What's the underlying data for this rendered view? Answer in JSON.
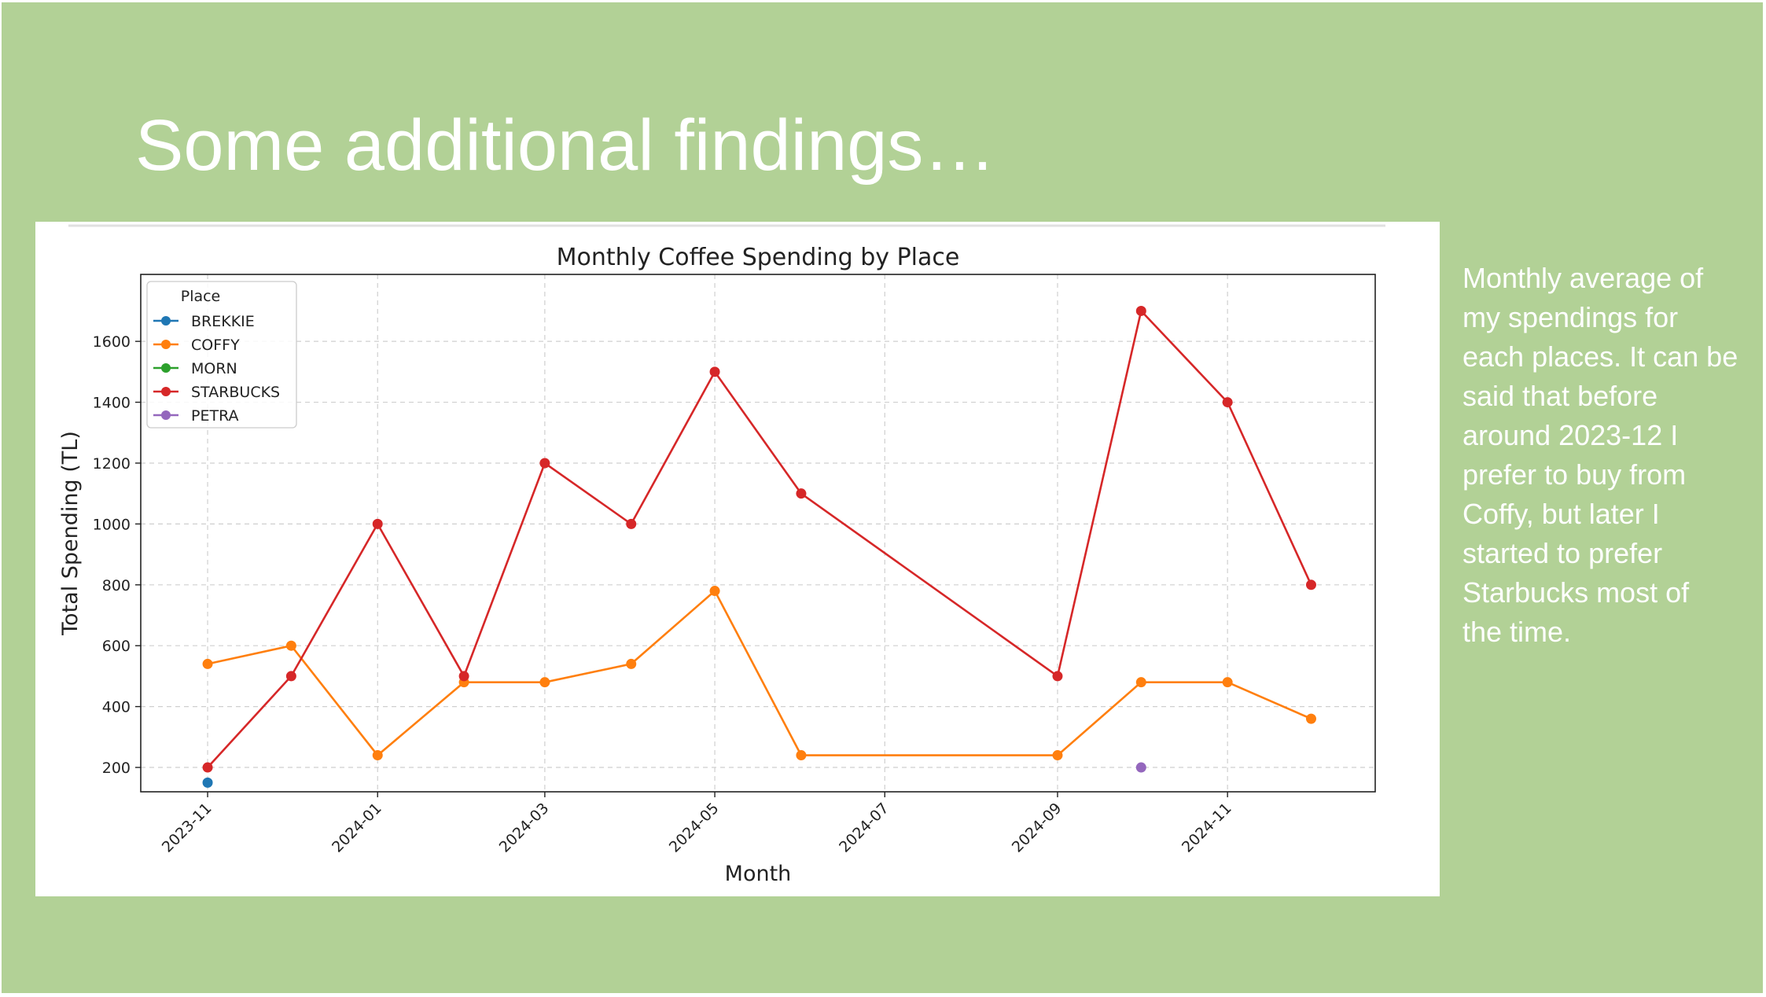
{
  "slide": {
    "title": "Some additional findings…",
    "description_lines": [
      "Monthly average of",
      "my spendings for",
      "each places. It can be",
      "said that before",
      "around 2023-12 I",
      "prefer to buy from",
      "Coffy, but later I",
      "started to prefer",
      "Starbucks most of",
      "the time."
    ]
  },
  "chart_data": {
    "type": "line",
    "title": "Monthly Coffee Spending by Place",
    "xlabel": "Month",
    "ylabel": "Total Spending (TL)",
    "x_ticks": [
      "2023-11",
      "2024-01",
      "2024-03",
      "2024-05",
      "2024-07",
      "2024-09",
      "2024-11"
    ],
    "y_ticks": [
      200,
      400,
      600,
      800,
      1000,
      1200,
      1400,
      1600
    ],
    "xlim": [
      "2023-10-08",
      "2024-12-24"
    ],
    "ylim": [
      120,
      1820
    ],
    "grid": true,
    "legend_title": "Place",
    "legend_position": "top-left",
    "series": [
      {
        "name": "BREKKIE",
        "color": "#1f77b4",
        "points": [
          {
            "x": "2023-11-01",
            "y": 150
          }
        ]
      },
      {
        "name": "COFFY",
        "color": "#ff7f0e",
        "points": [
          {
            "x": "2023-11-01",
            "y": 540
          },
          {
            "x": "2023-12-01",
            "y": 600
          },
          {
            "x": "2024-01-01",
            "y": 240
          },
          {
            "x": "2024-02-01",
            "y": 480
          },
          {
            "x": "2024-03-01",
            "y": 480
          },
          {
            "x": "2024-04-01",
            "y": 540
          },
          {
            "x": "2024-05-01",
            "y": 780
          },
          {
            "x": "2024-06-01",
            "y": 240
          },
          {
            "x": "2024-09-01",
            "y": 240
          },
          {
            "x": "2024-10-01",
            "y": 480
          },
          {
            "x": "2024-11-01",
            "y": 480
          },
          {
            "x": "2024-12-01",
            "y": 360
          }
        ]
      },
      {
        "name": "MORN",
        "color": "#2ca02c",
        "points": []
      },
      {
        "name": "STARBUCKS",
        "color": "#d62728",
        "points": [
          {
            "x": "2023-11-01",
            "y": 200
          },
          {
            "x": "2023-12-01",
            "y": 500
          },
          {
            "x": "2024-01-01",
            "y": 1000
          },
          {
            "x": "2024-02-01",
            "y": 500
          },
          {
            "x": "2024-03-01",
            "y": 1200
          },
          {
            "x": "2024-04-01",
            "y": 1000
          },
          {
            "x": "2024-05-01",
            "y": 1500
          },
          {
            "x": "2024-06-01",
            "y": 1100
          },
          {
            "x": "2024-09-01",
            "y": 500
          },
          {
            "x": "2024-10-01",
            "y": 1700
          },
          {
            "x": "2024-11-01",
            "y": 1400
          },
          {
            "x": "2024-12-01",
            "y": 800
          }
        ]
      },
      {
        "name": "PETRA",
        "color": "#9467bd",
        "points": [
          {
            "x": "2024-10-01",
            "y": 200
          }
        ]
      }
    ]
  }
}
